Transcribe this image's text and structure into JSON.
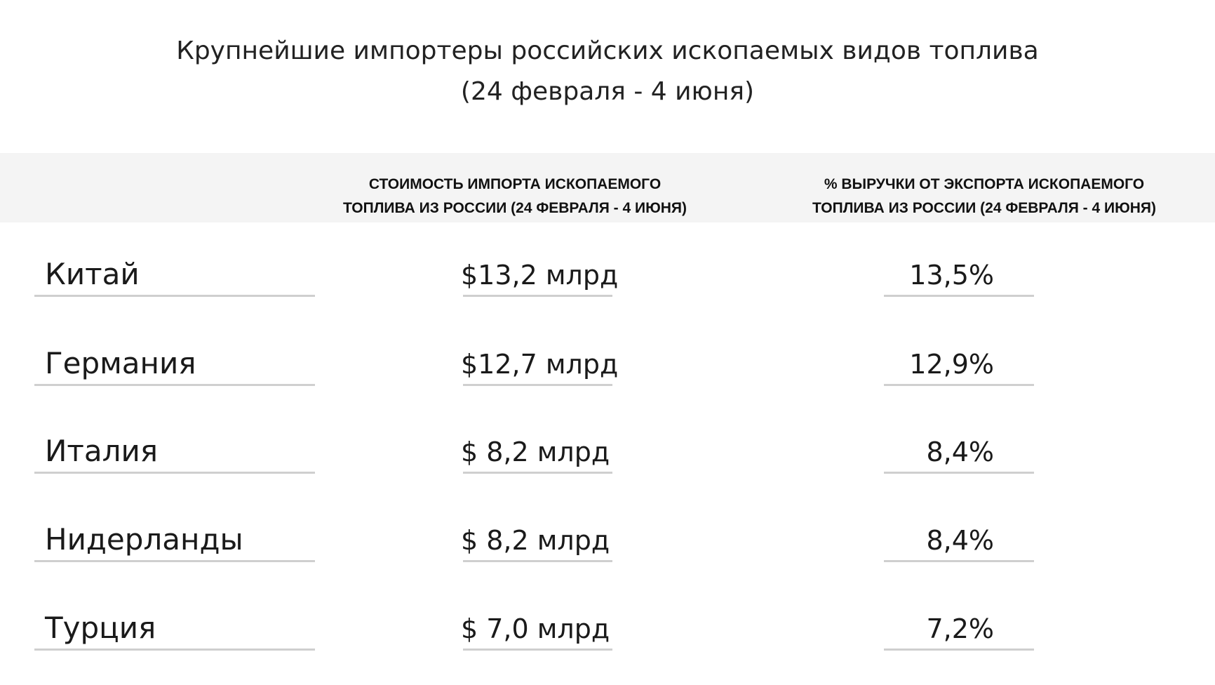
{
  "title": {
    "line1": "Крупнейшие импортеры российских ископаемых видов топлива",
    "line2": "(24 февраля - 4 июня)"
  },
  "headers": {
    "country": "",
    "import_value": [
      "СТОИМОСТЬ ИМПОРТА ИСКОПАЕМОГО",
      "ТОПЛИВА ИЗ РОССИИ (24 ФЕВРАЛЯ - 4 ИЮНЯ)"
    ],
    "export_share": [
      "% ВЫРУЧКИ ОТ ЭКСПОРТА ИСКОПАЕМОГО",
      "ТОПЛИВА ИЗ РОССИИ (24 ФЕВРАЛЯ - 4 ИЮНЯ)"
    ]
  },
  "rows": [
    {
      "country": "Китай",
      "value": "$13,2 млрд",
      "share": "13,5%"
    },
    {
      "country": "Германия",
      "value": "$12,7 млрд",
      "share": "12,9%"
    },
    {
      "country": "Италия",
      "value": "$ 8,2 млрд",
      "share": "8,4%"
    },
    {
      "country": "Нидерланды",
      "value": "$ 8,2 млрд",
      "share": "8,4%"
    },
    {
      "country": "Турция",
      "value": "$ 7,0 млрд",
      "share": "7,2%"
    }
  ]
}
